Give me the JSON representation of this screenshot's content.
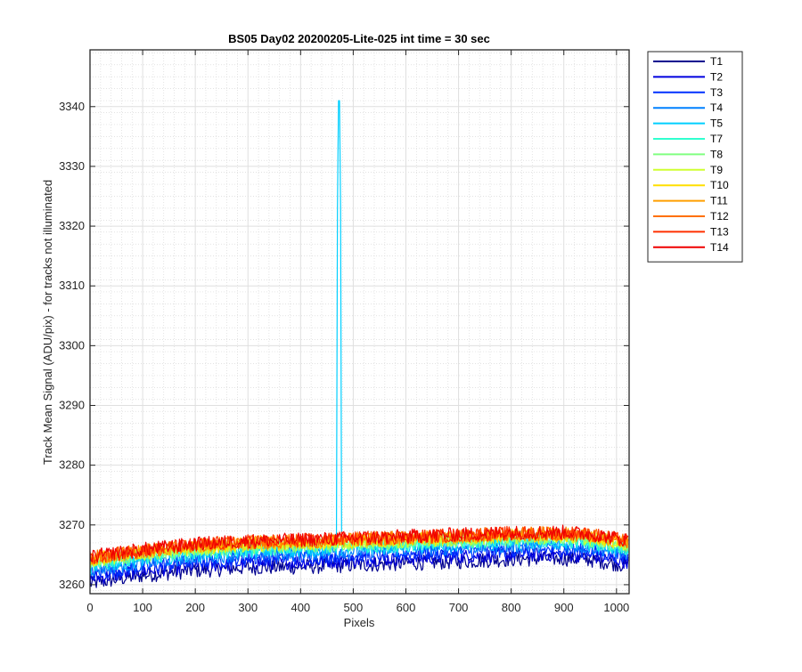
{
  "chart_data": {
    "type": "line",
    "title": "BS05 Day02 20200205-Lite-025 int time = 30 sec",
    "xlabel": "Pixels",
    "ylabel": "Track Mean Signal (ADU/pix) - for tracks not illuminated",
    "xlim": [
      0,
      1024
    ],
    "ylim": [
      3258.5,
      3349.5
    ],
    "xticks": [
      0,
      100,
      200,
      300,
      400,
      500,
      600,
      700,
      800,
      900,
      1000
    ],
    "yticks": [
      3260,
      3270,
      3280,
      3290,
      3300,
      3310,
      3320,
      3330,
      3340
    ],
    "grid": true,
    "minor_grid": true,
    "legend_position": "outside-top-right",
    "series": [
      {
        "name": "T1",
        "color": "#00008f",
        "noise": 1.3,
        "y": [
          3260.2,
          3261.6,
          3262.4,
          3262.9,
          3263.0,
          3263.3,
          3263.6,
          3263.9,
          3264.3,
          3264.4,
          3264.2,
          3263.2
        ]
      },
      {
        "name": "T2",
        "color": "#0000df",
        "noise": 1.2,
        "y": [
          3261.0,
          3262.3,
          3263.2,
          3263.6,
          3263.8,
          3264.1,
          3264.4,
          3264.7,
          3265.0,
          3265.1,
          3264.8,
          3263.8
        ]
      },
      {
        "name": "T3",
        "color": "#0030ff",
        "noise": 1.2,
        "y": [
          3261.8,
          3263.0,
          3263.9,
          3264.4,
          3264.6,
          3264.9,
          3265.2,
          3265.5,
          3265.8,
          3265.9,
          3265.6,
          3264.5
        ]
      },
      {
        "name": "T4",
        "color": "#0080ff",
        "noise": 1.2,
        "y": [
          3262.5,
          3263.7,
          3264.6,
          3265.1,
          3265.3,
          3265.6,
          3265.9,
          3266.2,
          3266.5,
          3266.6,
          3266.3,
          3265.2
        ]
      },
      {
        "name": "T5",
        "color": "#00cfff",
        "noise": 1.2,
        "y": [
          3263.0,
          3264.2,
          3265.1,
          3265.6,
          3265.8,
          3266.1,
          3266.4,
          3266.7,
          3267.0,
          3267.1,
          3266.8,
          3265.7
        ],
        "spike_x": 473,
        "spike_y": 3350
      },
      {
        "name": "T7",
        "color": "#30ffcf",
        "noise": 1.2,
        "y": [
          3263.4,
          3264.6,
          3265.5,
          3266.0,
          3266.2,
          3266.5,
          3266.8,
          3267.1,
          3267.4,
          3267.5,
          3267.2,
          3266.1
        ]
      },
      {
        "name": "T8",
        "color": "#80ff80",
        "noise": 1.2,
        "y": [
          3263.7,
          3264.9,
          3265.8,
          3266.3,
          3266.5,
          3266.8,
          3267.1,
          3267.4,
          3267.7,
          3267.8,
          3267.5,
          3266.4
        ]
      },
      {
        "name": "T9",
        "color": "#cfff30",
        "noise": 1.2,
        "y": [
          3264.0,
          3265.2,
          3266.1,
          3266.6,
          3266.8,
          3267.1,
          3267.4,
          3267.7,
          3268.0,
          3268.1,
          3267.8,
          3266.7
        ]
      },
      {
        "name": "T10",
        "color": "#ffdf00",
        "noise": 1.2,
        "y": [
          3264.2,
          3265.4,
          3266.3,
          3266.8,
          3267.0,
          3267.3,
          3267.6,
          3267.9,
          3268.2,
          3268.3,
          3268.0,
          3266.9
        ]
      },
      {
        "name": "T11",
        "color": "#ff9f00",
        "noise": 1.2,
        "y": [
          3264.4,
          3265.6,
          3266.5,
          3267.0,
          3267.2,
          3267.5,
          3267.8,
          3268.1,
          3268.4,
          3268.5,
          3268.2,
          3267.1
        ]
      },
      {
        "name": "T12",
        "color": "#ff7000",
        "noise": 1.2,
        "y": [
          3264.5,
          3265.7,
          3266.6,
          3267.1,
          3267.3,
          3267.6,
          3267.9,
          3268.2,
          3268.5,
          3268.6,
          3268.3,
          3267.2
        ]
      },
      {
        "name": "T13",
        "color": "#ff3000",
        "noise": 1.2,
        "y": [
          3264.6,
          3265.8,
          3266.7,
          3267.2,
          3267.4,
          3267.7,
          3268.0,
          3268.3,
          3268.6,
          3268.7,
          3268.4,
          3267.3
        ]
      },
      {
        "name": "T14",
        "color": "#ef0000",
        "noise": 1.2,
        "y": [
          3264.7,
          3265.9,
          3266.8,
          3267.3,
          3267.5,
          3267.8,
          3268.1,
          3268.4,
          3268.7,
          3268.8,
          3268.5,
          3267.4
        ]
      }
    ],
    "x_anchor_points": [
      0,
      100,
      200,
      300,
      400,
      500,
      600,
      700,
      800,
      900,
      950,
      1024
    ]
  }
}
